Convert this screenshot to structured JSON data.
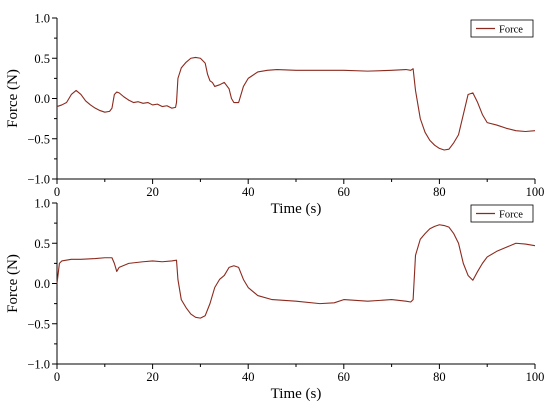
{
  "chart_data": [
    {
      "type": "line",
      "xlabel": "Time (s)",
      "ylabel": "Force (N)",
      "xlim": [
        0,
        100
      ],
      "ylim": [
        -1.0,
        1.0
      ],
      "xticks": [
        "0",
        "20",
        "40",
        "60",
        "80",
        "100"
      ],
      "yticks": [
        "-1.0",
        "-0.5",
        "0.0",
        "0.5",
        "1.0"
      ],
      "grid": false,
      "legend": "top-right",
      "series": [
        {
          "name": "Force",
          "color": "#8B2A1E",
          "x": [
            0,
            1,
            2,
            3,
            4,
            5,
            6,
            7,
            8,
            9,
            10,
            11,
            11.5,
            12,
            12.5,
            13,
            14,
            15,
            16,
            17,
            18,
            19,
            20,
            21,
            22,
            23,
            24,
            24.8,
            25,
            25.3,
            26,
            27,
            28,
            29,
            30,
            31,
            31.5,
            32,
            32.5,
            33,
            34,
            35,
            36,
            36.5,
            37,
            38,
            39,
            40,
            42,
            44,
            46,
            50,
            55,
            60,
            65,
            70,
            73,
            74,
            74.5,
            75,
            76,
            77,
            78,
            79,
            80,
            81,
            82,
            83,
            84,
            85,
            86,
            87,
            88,
            89,
            90,
            92,
            94,
            96,
            98,
            100
          ],
          "y": [
            -0.1,
            -0.08,
            -0.05,
            0.05,
            0.1,
            0.05,
            -0.03,
            -0.08,
            -0.12,
            -0.15,
            -0.17,
            -0.16,
            -0.12,
            0.05,
            0.08,
            0.07,
            0.02,
            -0.02,
            -0.05,
            -0.04,
            -0.06,
            -0.05,
            -0.08,
            -0.07,
            -0.1,
            -0.09,
            -0.12,
            -0.11,
            -0.05,
            0.25,
            0.38,
            0.45,
            0.5,
            0.51,
            0.5,
            0.44,
            0.3,
            0.22,
            0.2,
            0.15,
            0.17,
            0.2,
            0.12,
            0.0,
            -0.05,
            -0.05,
            0.15,
            0.25,
            0.33,
            0.35,
            0.36,
            0.35,
            0.35,
            0.35,
            0.34,
            0.35,
            0.36,
            0.35,
            0.37,
            0.1,
            -0.25,
            -0.42,
            -0.52,
            -0.58,
            -0.62,
            -0.64,
            -0.63,
            -0.55,
            -0.45,
            -0.2,
            0.05,
            0.07,
            -0.05,
            -0.2,
            -0.3,
            -0.33,
            -0.37,
            -0.4,
            -0.41,
            -0.4
          ]
        }
      ]
    },
    {
      "type": "line",
      "xlabel": "Time (s)",
      "ylabel": "Force (N)",
      "xlim": [
        0,
        100
      ],
      "ylim": [
        -1.0,
        1.0
      ],
      "xticks": [
        "0",
        "20",
        "40",
        "60",
        "80",
        "100"
      ],
      "yticks": [
        "-1.0",
        "-0.5",
        "0.0",
        "0.5",
        "1.0"
      ],
      "grid": false,
      "legend": "top-right",
      "series": [
        {
          "name": "Force",
          "color": "#8B2A1E",
          "x": [
            0,
            0.5,
            1,
            3,
            5,
            8,
            10,
            11.5,
            12,
            12.5,
            13,
            15,
            18,
            20,
            22,
            24,
            25,
            25.3,
            26,
            27,
            28,
            29,
            30,
            31,
            32,
            33,
            34,
            35,
            36,
            37,
            38,
            39,
            40,
            42,
            45,
            50,
            55,
            58,
            60,
            65,
            70,
            73,
            74,
            74.5,
            75,
            76,
            77,
            78,
            79,
            80,
            81,
            82,
            83,
            84,
            85,
            86,
            87,
            88,
            89,
            90,
            92,
            94,
            96,
            98,
            100
          ],
          "y": [
            0.0,
            0.25,
            0.28,
            0.3,
            0.3,
            0.31,
            0.32,
            0.32,
            0.25,
            0.15,
            0.2,
            0.25,
            0.27,
            0.28,
            0.27,
            0.28,
            0.29,
            0.05,
            -0.2,
            -0.3,
            -0.38,
            -0.42,
            -0.43,
            -0.4,
            -0.25,
            -0.05,
            0.05,
            0.1,
            0.2,
            0.22,
            0.2,
            0.05,
            -0.05,
            -0.15,
            -0.2,
            -0.22,
            -0.25,
            -0.24,
            -0.2,
            -0.22,
            -0.2,
            -0.22,
            -0.23,
            -0.2,
            0.35,
            0.55,
            0.62,
            0.68,
            0.71,
            0.73,
            0.72,
            0.7,
            0.62,
            0.5,
            0.25,
            0.1,
            0.04,
            0.15,
            0.25,
            0.33,
            0.4,
            0.45,
            0.5,
            0.49,
            0.47
          ]
        }
      ]
    }
  ]
}
